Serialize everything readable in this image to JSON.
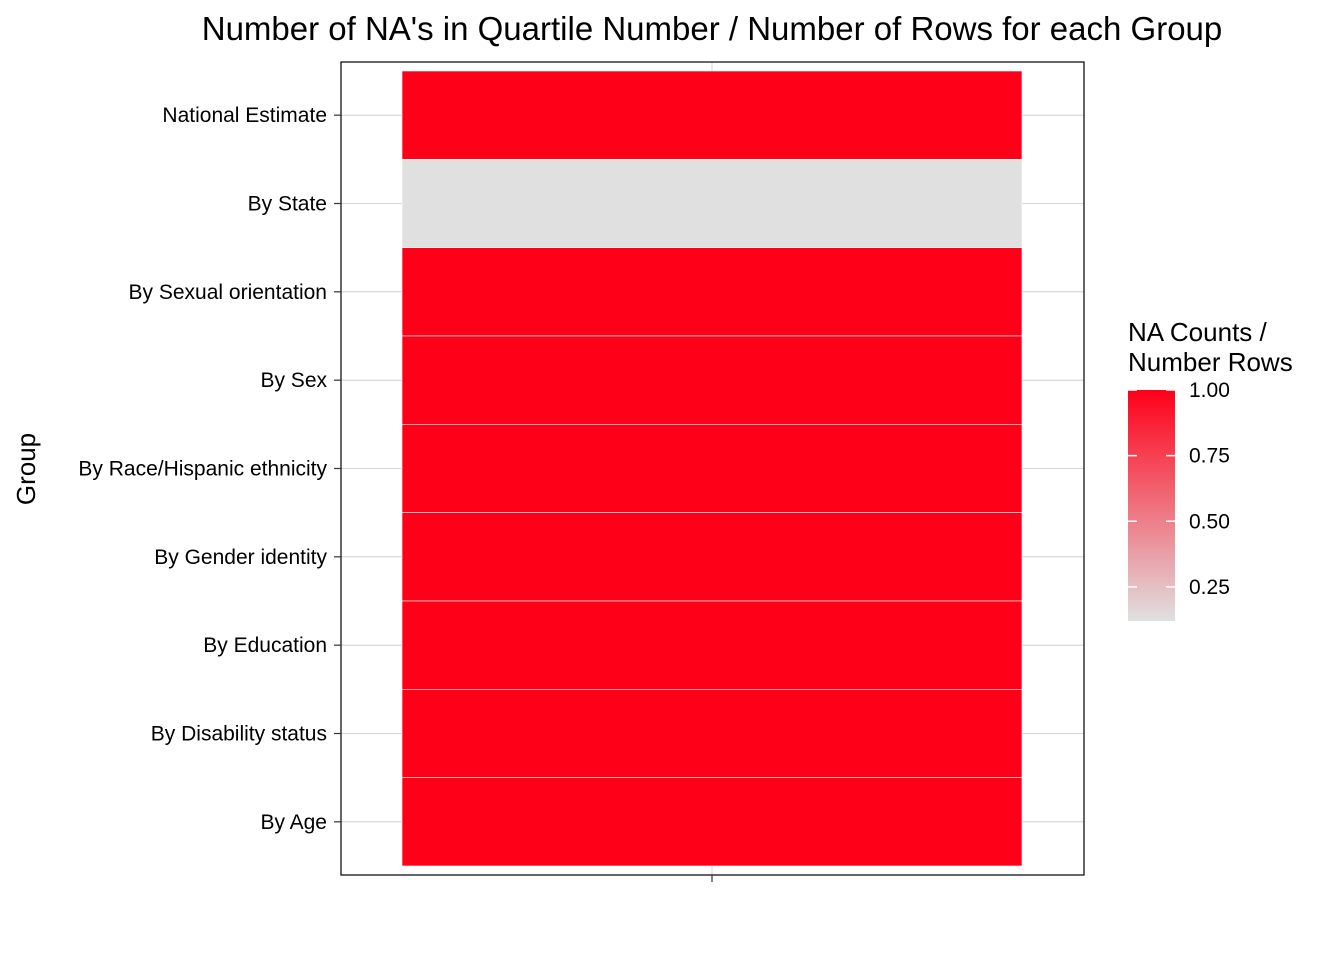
{
  "chart_data": {
    "type": "heatmap",
    "title": "Number of NA's in Quartile Number / Number of Rows for each Group",
    "xlabel": "",
    "ylabel": "Group",
    "categories": [
      "National Estimate",
      "By State",
      "By Sexual orientation",
      "By Sex",
      "By Race/Hispanic ethnicity",
      "By Gender identity",
      "By Education",
      "By Disability status",
      "By Age"
    ],
    "values": [
      1.0,
      0.12,
      1.0,
      1.0,
      1.0,
      1.0,
      1.0,
      1.0,
      1.0
    ],
    "grid": true,
    "legend": {
      "title_lines": [
        "NA Counts /",
        "Number Rows"
      ],
      "position": "right",
      "range": [
        0.12,
        1.0
      ],
      "breaks": [
        1.0,
        0.75,
        0.5,
        0.25
      ],
      "break_labels": [
        "1.00",
        "0.75",
        "0.50",
        "0.25"
      ],
      "low_color": "#e0e0e0",
      "high_color": "#ff0019"
    }
  }
}
